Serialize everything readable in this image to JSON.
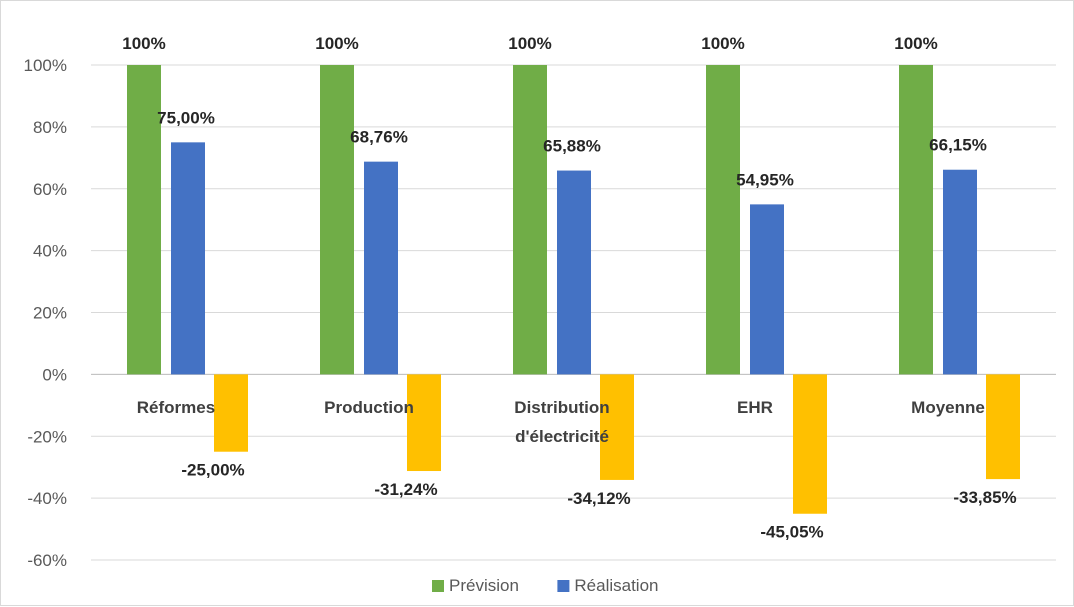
{
  "chart_data": {
    "type": "bar",
    "title": "",
    "xlabel": "",
    "ylabel": "",
    "ylim": [
      -0.6,
      1.0
    ],
    "yticks": [
      1.0,
      0.8,
      0.6,
      0.4,
      0.2,
      0.0,
      -0.2,
      -0.4,
      -0.6
    ],
    "ytick_labels": [
      "100%",
      "80%",
      "60%",
      "40%",
      "20%",
      "0%",
      "-20%",
      "-40%",
      "-60%"
    ],
    "grid": true,
    "legend_position": "bottom",
    "categories": [
      [
        "Réformes"
      ],
      [
        "Production"
      ],
      [
        "Distribution",
        "d'électricité"
      ],
      [
        "EHR"
      ],
      [
        "Moyenne"
      ]
    ],
    "series": [
      {
        "name": "Prévision",
        "color": "#70ad47",
        "values": [
          1.0,
          1.0,
          1.0,
          1.0,
          1.0
        ],
        "labels": [
          "100%",
          "100%",
          "100%",
          "100%",
          "100%"
        ]
      },
      {
        "name": "Réalisation",
        "color": "#4472c4",
        "values": [
          0.75,
          0.6876,
          0.6588,
          0.5495,
          0.6615
        ],
        "labels": [
          "75,00%",
          "68,76%",
          "65,88%",
          "54,95%",
          "66,15%"
        ]
      },
      {
        "color": "#ffc000",
        "values": [
          -0.25,
          -0.3124,
          -0.3412,
          -0.4505,
          -0.3385
        ],
        "labels": [
          "-25,00%",
          "-31,24%",
          "-34,12%",
          "-45,05%",
          "-33,85%"
        ]
      }
    ],
    "legend": [
      "Prévision",
      "Réalisation"
    ]
  }
}
